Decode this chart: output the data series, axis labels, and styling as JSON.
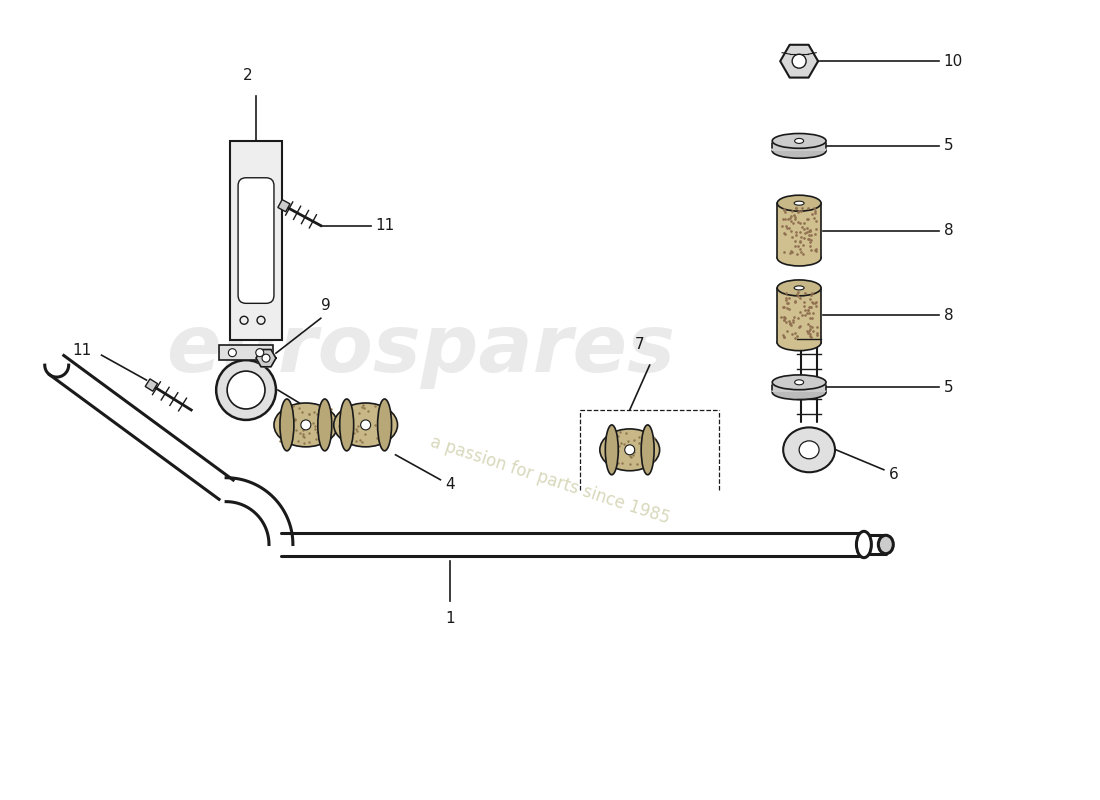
{
  "bg_color": "#ffffff",
  "line_color": "#1a1a1a",
  "watermark_text1": "eurospares",
  "watermark_text2": "a passion for parts since 1985",
  "fig_width": 11.0,
  "fig_height": 8.0,
  "dpi": 100
}
